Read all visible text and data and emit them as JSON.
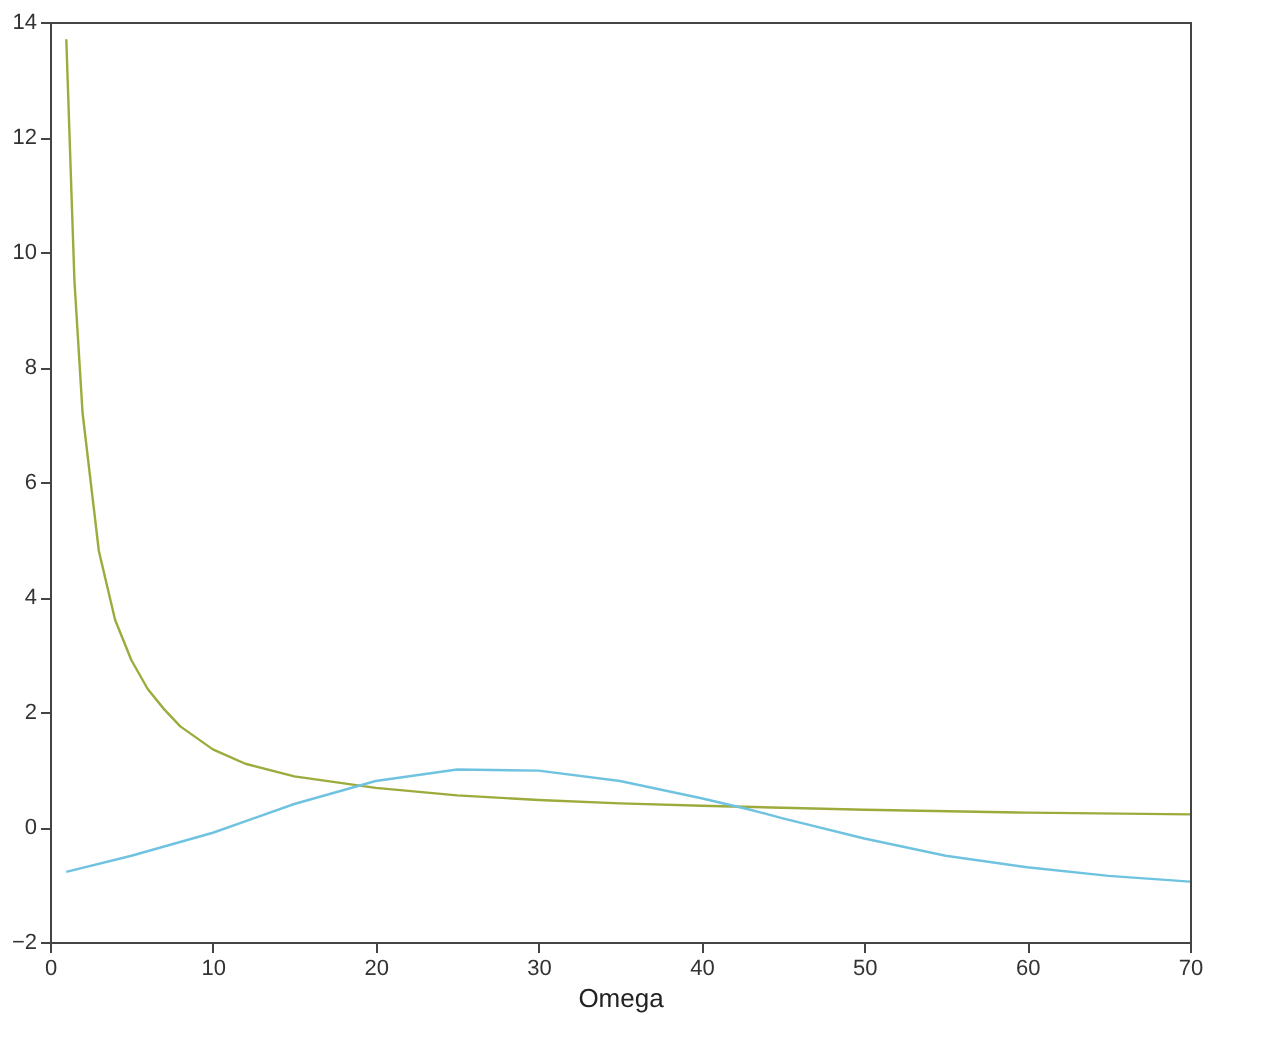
{
  "chart_data": {
    "type": "line",
    "xlabel": "Omega",
    "xlim": [
      0,
      70
    ],
    "ylim": [
      -2,
      14
    ],
    "xticks": [
      0,
      10,
      20,
      30,
      40,
      50,
      60,
      70
    ],
    "yticks": [
      -2,
      0,
      2,
      4,
      6,
      8,
      10,
      12,
      14
    ],
    "grid": false,
    "marker": "none",
    "line_style": "solid",
    "series": [
      {
        "color": "#9dab3c",
        "x": [
          1,
          1.5,
          2,
          3,
          4,
          5,
          6,
          7,
          8,
          10,
          12,
          15,
          20,
          25,
          30,
          35,
          40,
          50,
          60,
          70
        ],
        "values": [
          13.7,
          9.5,
          7.2,
          4.8,
          3.6,
          2.9,
          2.4,
          2.05,
          1.75,
          1.35,
          1.1,
          0.88,
          0.68,
          0.55,
          0.47,
          0.41,
          0.37,
          0.3,
          0.25,
          0.22
        ]
      },
      {
        "color": "#6fc3e0",
        "x": [
          1,
          5,
          10,
          15,
          20,
          25,
          30,
          35,
          40,
          43,
          45,
          50,
          55,
          60,
          65,
          70
        ],
        "values": [
          -0.78,
          -0.5,
          -0.1,
          0.4,
          0.8,
          1.0,
          0.98,
          0.8,
          0.5,
          0.3,
          0.15,
          -0.2,
          -0.5,
          -0.7,
          -0.85,
          -0.95
        ]
      }
    ]
  }
}
